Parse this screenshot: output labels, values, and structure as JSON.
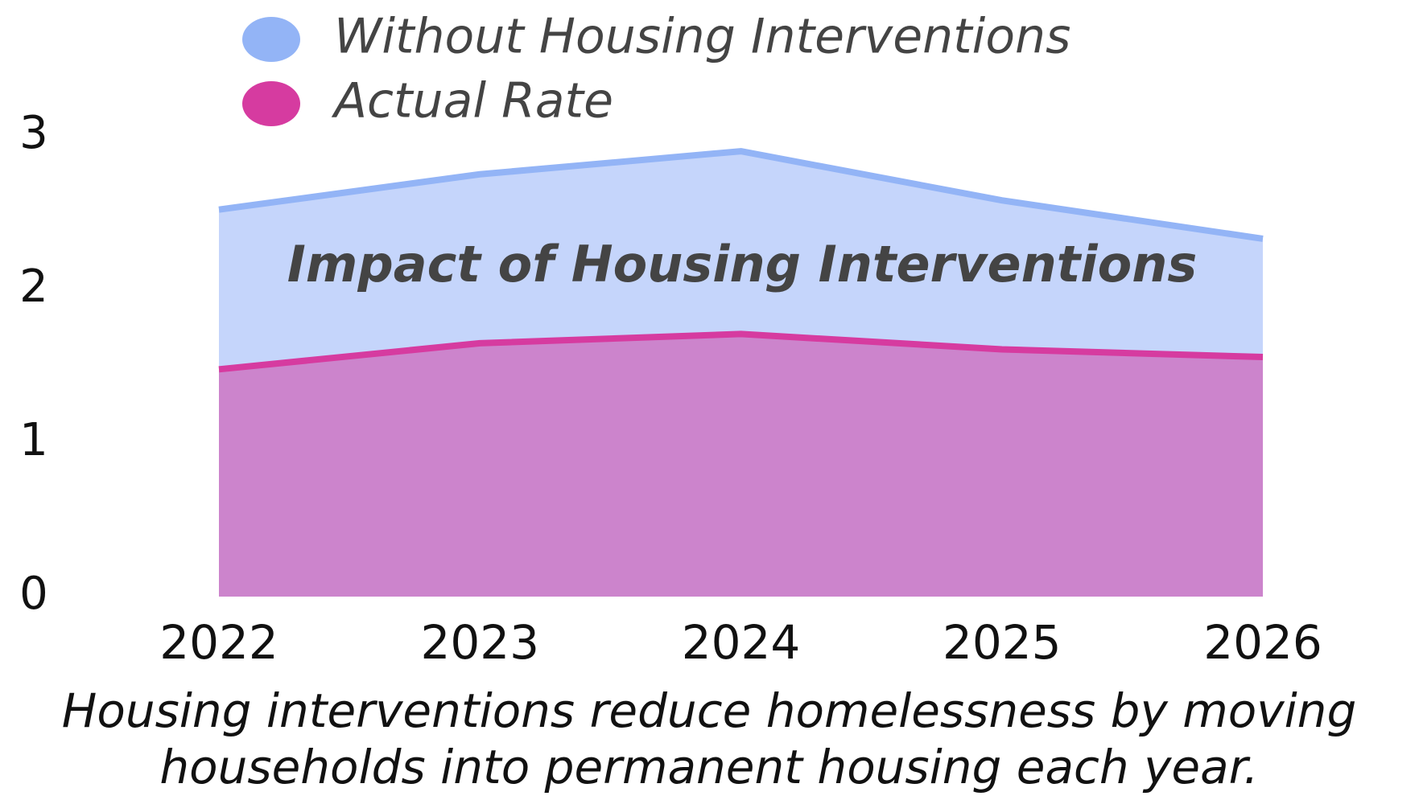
{
  "chart_data": {
    "type": "area",
    "annotation": "Impact of Housing Interventions",
    "caption": [
      "Housing interventions reduce homelessness by moving",
      "households into permanent housing each year."
    ],
    "categories": [
      "2022",
      "2023",
      "2024",
      "2025",
      "2026"
    ],
    "series": [
      {
        "name": "Without Housing Interventions",
        "color": "#93b4f6",
        "fill": "#c5d5fb",
        "values": [
          2.52,
          2.75,
          2.9,
          2.58,
          2.33
        ]
      },
      {
        "name": "Actual Rate",
        "color": "#d63ba0",
        "fill": "#cc84cc",
        "values": [
          1.48,
          1.65,
          1.71,
          1.61,
          1.56
        ]
      }
    ],
    "ylim": [
      0,
      3
    ],
    "yticks": [
      0,
      1,
      2,
      3
    ],
    "grid": false
  }
}
